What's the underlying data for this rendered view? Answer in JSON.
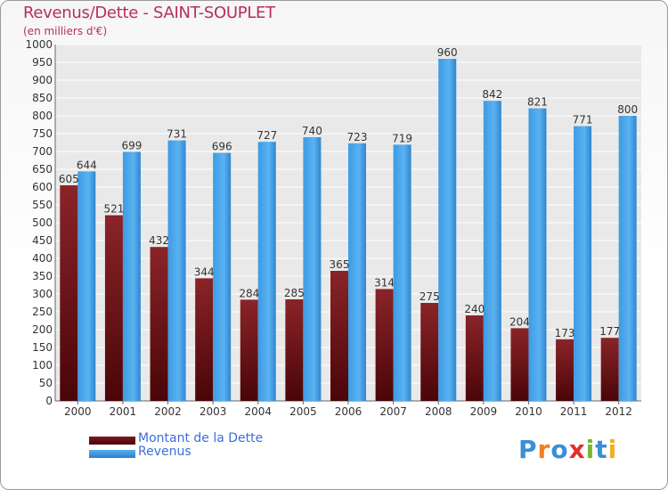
{
  "header": {
    "title": "Revenus/Dette - SAINT-SOUPLET",
    "subtitle": "(en milliers d'€)"
  },
  "legend": {
    "items": [
      {
        "label": "Montant de la Dette",
        "color": "#6b0f13"
      },
      {
        "label": "Revenus",
        "color": "#3a9ae0"
      }
    ]
  },
  "logo": {
    "text": "Proxiti",
    "letter_colors": [
      "#3a8fd8",
      "#f08020",
      "#3a8fd8",
      "#e03030",
      "#7ab82f",
      "#3a8fd8",
      "#f0b020"
    ]
  },
  "chart_data": {
    "type": "bar",
    "title": "Revenus/Dette - SAINT-SOUPLET",
    "subtitle": "(en milliers d'€)",
    "categories": [
      "2000",
      "2001",
      "2002",
      "2003",
      "2004",
      "2005",
      "2006",
      "2007",
      "2008",
      "2009",
      "2010",
      "2011",
      "2012"
    ],
    "series": [
      {
        "name": "Montant de la Dette",
        "color": "#6b0f13",
        "values": [
          605,
          521,
          432,
          344,
          284,
          285,
          365,
          314,
          275,
          240,
          204,
          173,
          177
        ]
      },
      {
        "name": "Revenus",
        "color": "#3a9ae0",
        "values": [
          644,
          699,
          731,
          696,
          727,
          740,
          723,
          719,
          960,
          842,
          821,
          771,
          800
        ]
      }
    ],
    "ylim": [
      0,
      1000
    ],
    "ytick_step": 50,
    "grid": true,
    "legend_position": "bottom-left"
  }
}
